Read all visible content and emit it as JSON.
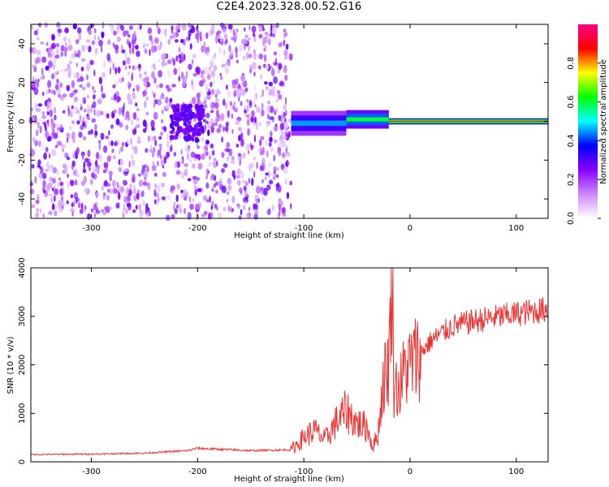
{
  "page": {
    "title": "C2E4.2023.328.00.52.G16"
  },
  "chart_data": [
    {
      "type": "heatmap",
      "xlabel": "Height of straight line (km)",
      "ylabel": "Frequency (Hz)",
      "xlim": [
        -357,
        130
      ],
      "ylim": [
        -50,
        50
      ],
      "x_ticks": [
        -300,
        -200,
        -100,
        0,
        100
      ],
      "y_ticks": [
        -40,
        -20,
        0,
        20,
        40
      ],
      "colorbar": {
        "label": "Normalized spectral amplitude",
        "range": [
          0.0,
          1.0
        ],
        "ticks": [
          "0.0",
          "0.2",
          "0.4",
          "0.6",
          "0.8"
        ],
        "colors": [
          "#ffffff",
          "#cc88ff",
          "#8800ff",
          "#0000ff",
          "#00ffff",
          "#00ff00",
          "#ffff00",
          "#ff0000",
          "#ff0088"
        ]
      },
      "regions": [
        {
          "x_range": [
            -357,
            -112
          ],
          "freq_range": [
            -50,
            50
          ],
          "intensity": 0.15,
          "description_level": "noise"
        },
        {
          "x_range": [
            -225,
            -195
          ],
          "freq_range": [
            -10,
            8
          ],
          "intensity": 0.28
        },
        {
          "x_range": [
            -112,
            -60
          ],
          "freq_center": -1,
          "freq_halfwidth": 4,
          "intensity": 0.45
        },
        {
          "x_range": [
            -60,
            -20
          ],
          "freq_center": 1,
          "freq_halfwidth": 3,
          "intensity": 0.6
        },
        {
          "x_range": [
            -20,
            130
          ],
          "freq_center": 0,
          "freq_halfwidth": 1,
          "intensity": 0.85
        }
      ]
    },
    {
      "type": "line",
      "xlabel": "Height of straight line (km)",
      "ylabel": "SNR (10 * v/v)",
      "xlim": [
        -357,
        130
      ],
      "ylim": [
        0,
        4000
      ],
      "x_ticks": [
        -300,
        -200,
        -100,
        0,
        100
      ],
      "y_ticks": [
        0,
        1000,
        2000,
        3000,
        4000
      ],
      "series": [
        {
          "color": "#ee3333",
          "x": [
            -357,
            -300,
            -250,
            -210,
            -200,
            -150,
            -112,
            -100,
            -90,
            -80,
            -70,
            -60,
            -50,
            -40,
            -35,
            -30,
            -25,
            -20,
            -17,
            -15,
            -10,
            -5,
            0,
            10,
            20,
            30,
            40,
            60,
            80,
            100,
            130
          ],
          "y": [
            150,
            160,
            180,
            230,
            280,
            230,
            250,
            500,
            650,
            450,
            800,
            1050,
            800,
            700,
            300,
            600,
            1700,
            2000,
            4000,
            1600,
            1500,
            1900,
            2000,
            2250,
            2500,
            2650,
            2800,
            2900,
            2980,
            3050,
            3150
          ]
        }
      ]
    }
  ]
}
